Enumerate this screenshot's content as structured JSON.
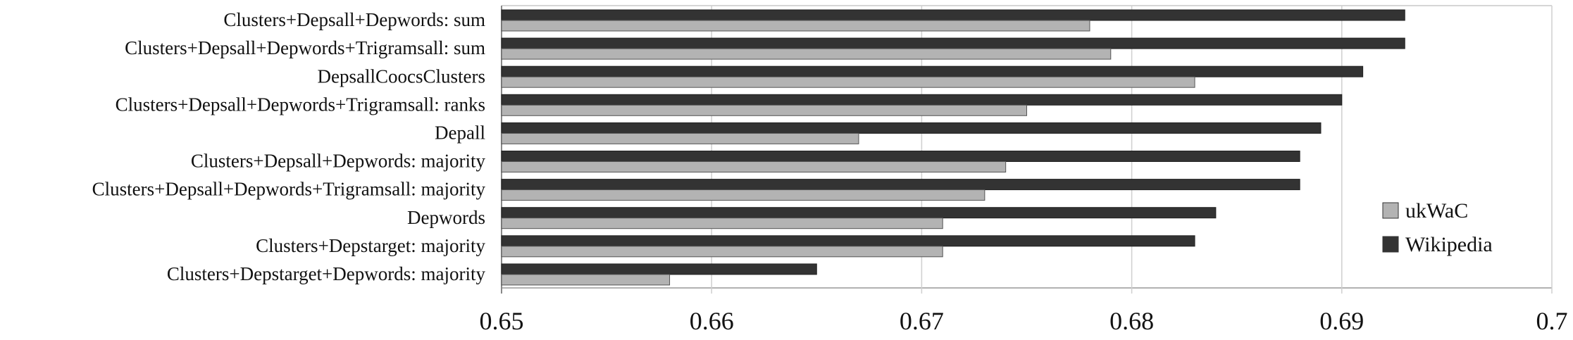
{
  "chart_data": {
    "type": "bar",
    "orientation": "horizontal",
    "title": "",
    "xlabel": "",
    "ylabel": "",
    "categories": [
      "Clusters+Depsall+Depwords: sum",
      "Clusters+Depsall+Depwords+Trigramsall: sum",
      "DepsallCoocsClusters",
      "Clusters+Depsall+Depwords+Trigramsall: ranks",
      "Depall",
      "Clusters+Depsall+Depwords: majority",
      "Clusters+Depsall+Depwords+Trigramsall: majority",
      "Depwords",
      "Clusters+Depstarget: majority",
      "Clusters+Depstarget+Depwords: majority"
    ],
    "series": [
      {
        "name": "Wikipedia",
        "color": "#333333",
        "values": [
          0.693,
          0.693,
          0.691,
          0.69,
          0.689,
          0.688,
          0.688,
          0.684,
          0.683,
          0.665
        ]
      },
      {
        "name": "ukWaC",
        "color": "#b3b3b3",
        "values": [
          0.678,
          0.679,
          0.683,
          0.675,
          0.667,
          0.674,
          0.673,
          0.671,
          0.671,
          0.658
        ]
      }
    ],
    "xlim": [
      0.65,
      0.7
    ],
    "xticks": [
      "0.65",
      "0.66",
      "0.67",
      "0.68",
      "0.69",
      "0.7"
    ],
    "grid": "vertical",
    "legend": {
      "position": "right",
      "order": [
        "ukWaC",
        "Wikipedia"
      ]
    }
  }
}
